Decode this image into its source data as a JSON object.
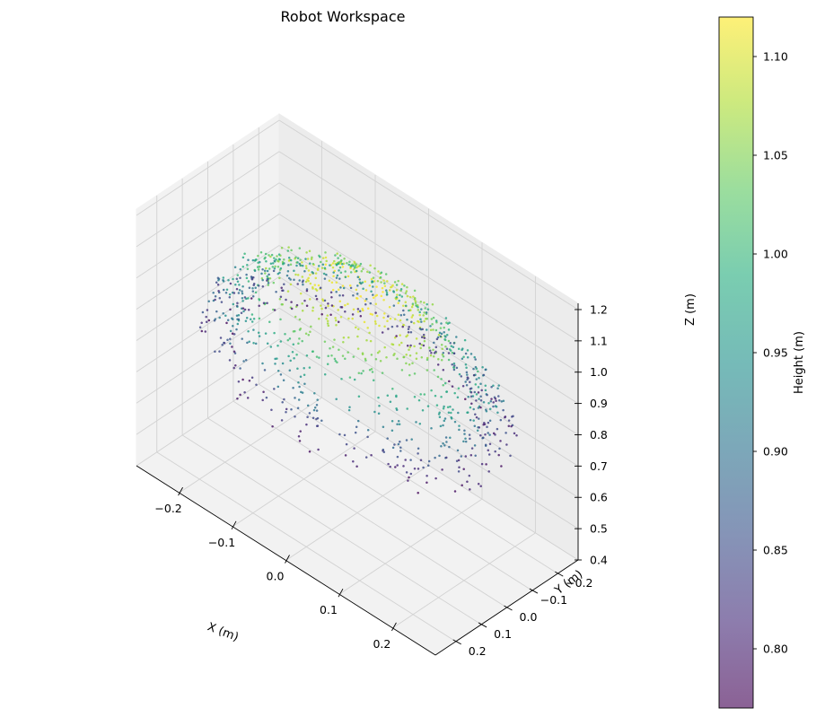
{
  "chart_data": {
    "type": "scatter",
    "projection": "3d",
    "title": "Robot Workspace",
    "xlabel": "X (m)",
    "ylabel": "Y (m)",
    "zlabel": "Z (m)",
    "xlim": [
      -0.28,
      0.28
    ],
    "ylim": [
      -0.28,
      0.28
    ],
    "zlim": [
      0.4,
      1.22
    ],
    "x_ticks": [
      "−0.2",
      "−0.1",
      "0.0",
      "0.1",
      "0.2"
    ],
    "y_ticks": [
      "−0.2",
      "−0.1",
      "0.0",
      "0.1",
      "0.2"
    ],
    "z_ticks": [
      "0.4",
      "0.5",
      "0.6",
      "0.7",
      "0.8",
      "0.9",
      "1.0",
      "1.1",
      "1.2"
    ],
    "grid": true,
    "point_count": 1200,
    "workspace_shape": "hemispherical shell, radius ≈ 0.25 m, apex z ≈ 1.12 m, base z ≈ 0.77 m",
    "colormap": "viridis",
    "colorbar": {
      "label": "Height (m)",
      "range": [
        0.77,
        1.12
      ],
      "ticks": [
        "0.80",
        "0.85",
        "0.90",
        "0.95",
        "1.00",
        "1.05",
        "1.10"
      ],
      "placement": "right"
    },
    "colors": {
      "low": "#440154",
      "mid": "#21918c",
      "high": "#fde725",
      "pane": "#f2f2f2",
      "grid": "#d2d2d2"
    }
  }
}
